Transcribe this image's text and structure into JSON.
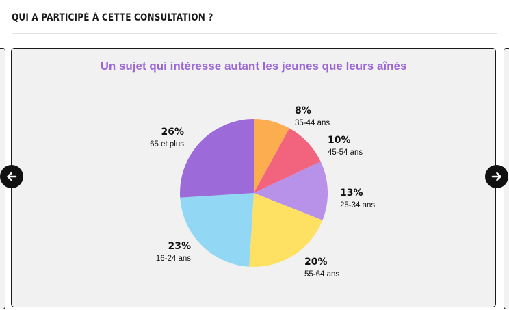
{
  "section": {
    "title": "QUI A PARTICIPÉ À CETTE CONSULTATION ?"
  },
  "card": {
    "title": "Un sujet qui intéresse autant les jeunes que leurs aînés"
  },
  "nav": {
    "prev_icon": "arrow-left-icon",
    "next_icon": "arrow-right-icon"
  },
  "colors": {
    "accent_title": "#9b67d8",
    "nav_button": "#111111"
  },
  "chart_data": {
    "type": "pie",
    "title": "Un sujet qui intéresse autant les jeunes que leurs aînés",
    "slices": [
      {
        "category": "35-44 ans",
        "value": 8,
        "label": "8%",
        "color": "#fbad4f"
      },
      {
        "category": "45-54 ans",
        "value": 10,
        "label": "10%",
        "color": "#f2647e"
      },
      {
        "category": "25-34 ans",
        "value": 13,
        "label": "13%",
        "color": "#b892e8"
      },
      {
        "category": "55-64 ans",
        "value": 20,
        "label": "20%",
        "color": "#fee163"
      },
      {
        "category": "16-24 ans",
        "value": 23,
        "label": "23%",
        "color": "#92d8f4"
      },
      {
        "category": "65 et plus",
        "value": 26,
        "label": "26%",
        "color": "#9d6ada"
      }
    ],
    "start_angle": "12 o'clock",
    "direction": "clockwise",
    "legend": "labels beside slices"
  }
}
